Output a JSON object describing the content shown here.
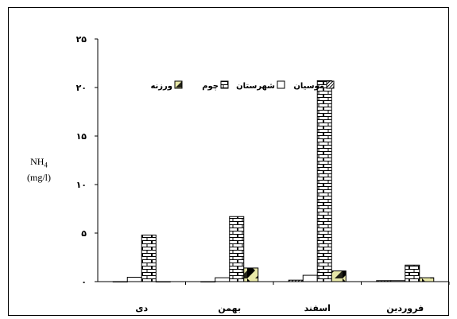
{
  "chart_data": {
    "type": "bar",
    "ylabel_main": "NH",
    "ylabel_sub": "4",
    "ylabel_unit": "(mg/l)",
    "ylim": [
      0,
      25
    ],
    "yticks": [
      "۰",
      "۵",
      "۱۰",
      "۱۵",
      "۲۰",
      "۲۵"
    ],
    "categories": [
      "دی",
      "بهمن",
      "اسفند",
      "فروردین"
    ],
    "series": [
      {
        "name": "موسیان",
        "pattern": "hatch",
        "values": [
          0,
          0,
          0.15,
          0.1
        ]
      },
      {
        "name": "شهرستان",
        "pattern": "white",
        "values": [
          0.45,
          0.4,
          0.65,
          0.1
        ]
      },
      {
        "name": "چوم",
        "pattern": "brick",
        "values": [
          4.8,
          6.7,
          20.7,
          1.7
        ]
      },
      {
        "name": "ورزنه",
        "pattern": "diamond",
        "values": [
          0,
          1.4,
          1.1,
          0.4
        ]
      }
    ],
    "grid": false,
    "legend_position": "top"
  }
}
